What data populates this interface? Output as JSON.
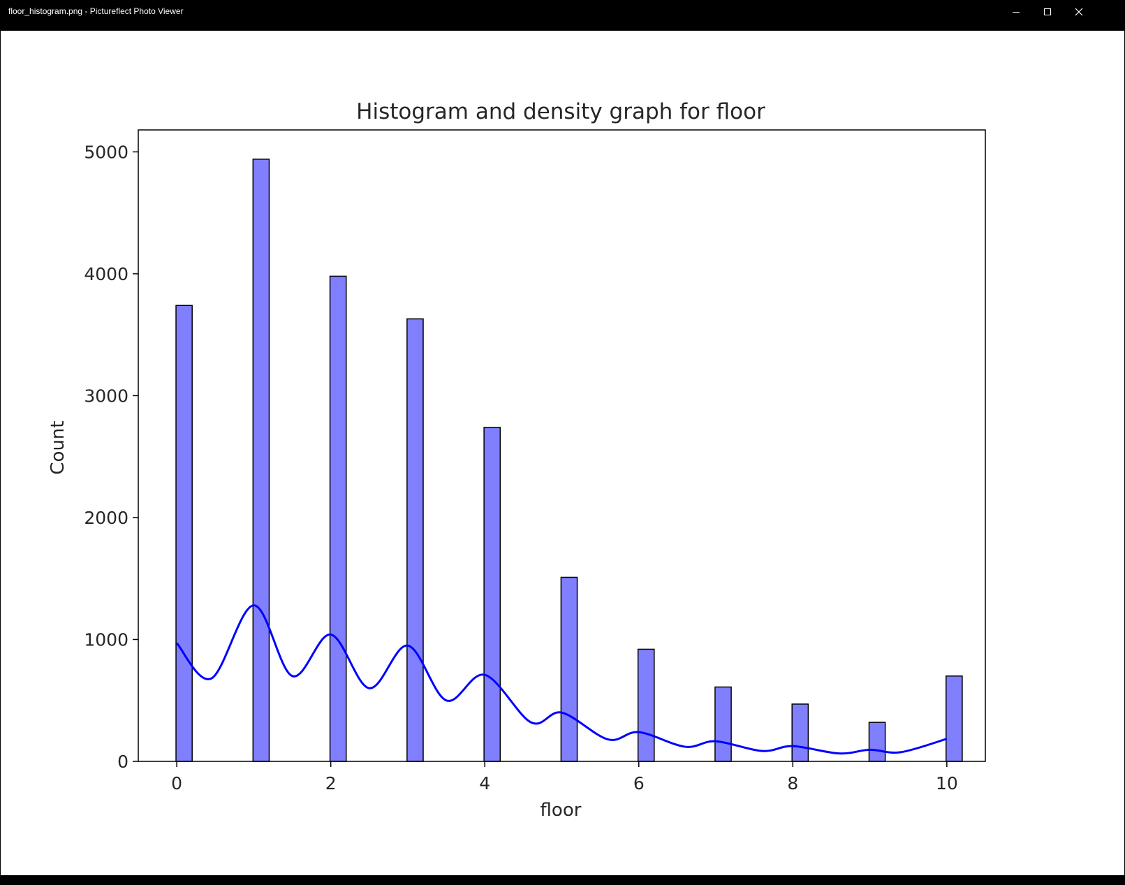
{
  "window": {
    "title": "floor_histogram.png - Pictureflect Photo Viewer",
    "minimize_icon": "minimize-icon",
    "maximize_icon": "maximize-icon",
    "close_icon": "close-icon"
  },
  "chart_data": {
    "type": "bar",
    "title": "Histogram and density graph for floor",
    "xlabel": "floor",
    "ylabel": "Count",
    "xlim": [
      -0.5,
      10.5
    ],
    "ylim": [
      0,
      5180
    ],
    "xticks": [
      "0",
      "2",
      "4",
      "6",
      "8",
      "10"
    ],
    "xtick_values": [
      0,
      2,
      4,
      6,
      8,
      10
    ],
    "yticks": [
      "0",
      "1000",
      "2000",
      "3000",
      "4000",
      "5000"
    ],
    "ytick_values": [
      0,
      1000,
      2000,
      3000,
      4000,
      5000
    ],
    "bar_color": "#8080ff",
    "bar_edge_color": "#000000",
    "kde_color": "#0000ff",
    "grid": false,
    "bars": [
      {
        "x": 0,
        "count": 3740
      },
      {
        "x": 1,
        "count": 4940
      },
      {
        "x": 2,
        "count": 3980
      },
      {
        "x": 3,
        "count": 3630
      },
      {
        "x": 4,
        "count": 2740
      },
      {
        "x": 5,
        "count": 1510
      },
      {
        "x": 6,
        "count": 920
      },
      {
        "x": 7,
        "count": 610
      },
      {
        "x": 8,
        "count": 470
      },
      {
        "x": 9,
        "count": 320
      },
      {
        "x": 10,
        "count": 700
      }
    ],
    "density_curve": [
      {
        "x": 0.0,
        "y": 970
      },
      {
        "x": 0.45,
        "y": 680
      },
      {
        "x": 1.0,
        "y": 1280
      },
      {
        "x": 1.5,
        "y": 700
      },
      {
        "x": 2.0,
        "y": 1040
      },
      {
        "x": 2.5,
        "y": 600
      },
      {
        "x": 3.0,
        "y": 950
      },
      {
        "x": 3.5,
        "y": 500
      },
      {
        "x": 4.0,
        "y": 710
      },
      {
        "x": 4.6,
        "y": 320
      },
      {
        "x": 5.0,
        "y": 400
      },
      {
        "x": 5.6,
        "y": 180
      },
      {
        "x": 6.0,
        "y": 240
      },
      {
        "x": 6.6,
        "y": 120
      },
      {
        "x": 7.0,
        "y": 165
      },
      {
        "x": 7.6,
        "y": 85
      },
      {
        "x": 8.0,
        "y": 125
      },
      {
        "x": 8.6,
        "y": 65
      },
      {
        "x": 9.0,
        "y": 95
      },
      {
        "x": 9.4,
        "y": 75
      },
      {
        "x": 10.0,
        "y": 185
      }
    ]
  }
}
